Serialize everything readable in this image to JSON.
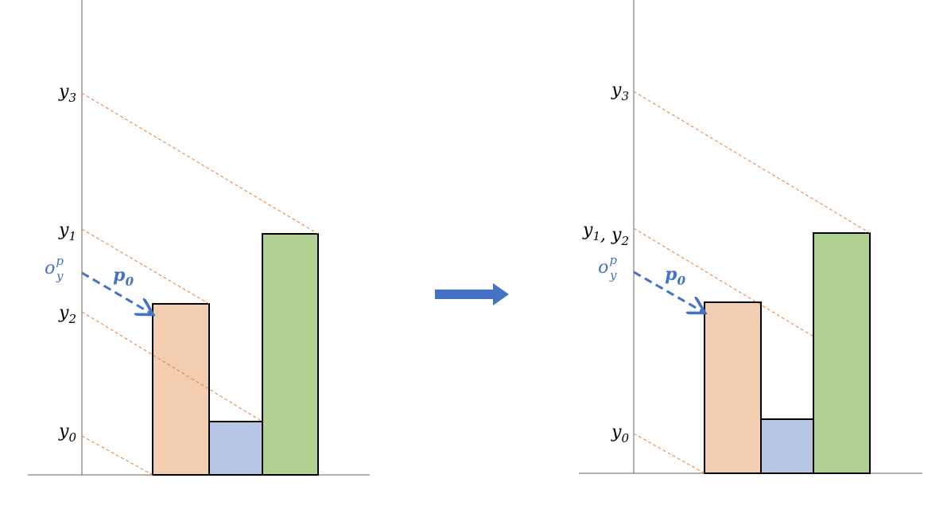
{
  "left": {
    "y3": {
      "base": "y",
      "sub": "3"
    },
    "y1": {
      "base": "y",
      "sub": "1"
    },
    "oyp": {
      "base": "o",
      "sub": "y",
      "sup": "p"
    },
    "p0": {
      "base": "p",
      "sub": "0"
    },
    "y2": {
      "base": "y",
      "sub": "2"
    },
    "y0": {
      "base": "y",
      "sub": "0"
    }
  },
  "right": {
    "y3": {
      "base": "y",
      "sub": "3"
    },
    "y1_y2": {
      "first": {
        "base": "y",
        "sub": "1"
      },
      "separator": ",",
      "second": {
        "base": "y",
        "sub": "2"
      }
    },
    "oyp": {
      "base": "o",
      "sub": "y",
      "sup": "p"
    },
    "p0": {
      "base": "p",
      "sub": "0"
    },
    "y0": {
      "base": "y",
      "sub": "0"
    }
  }
}
